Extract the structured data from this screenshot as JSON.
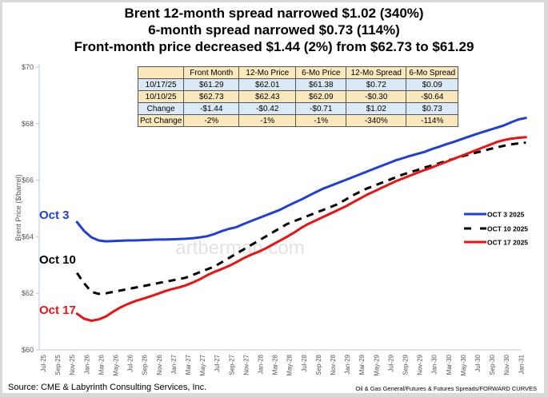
{
  "title_lines": [
    "Brent 12-month spread narrowed $1.02 (340%)",
    "6-month spread narrowed $0.73 (114%)",
    "Front-month price decreased $1.44 (2%) from $62.73 to $61.29"
  ],
  "source": "Source: CME & Labyrinth Consulting Services, Inc.",
  "file_path": "Oil & Gas General/Futures & Futures Spreads/FORWARD CURVES",
  "watermark": "artberman.com",
  "summary_table": {
    "headers": [
      "",
      "Front Month",
      "12-Mo Price",
      "6-Mo Price",
      "12-Mo Spread",
      "6-Mo Spread"
    ],
    "rows": [
      {
        "label": "10/17/25",
        "cells": [
          "$61.29",
          "$62.01",
          "$61.38",
          "$0.72",
          "$0.09"
        ]
      },
      {
        "label": "10/10/25",
        "cells": [
          "$62.73",
          "$62.43",
          "$62.09",
          "-$0.30",
          "-$0.64"
        ]
      },
      {
        "label": "Change",
        "cells": [
          "-$1.44",
          "-$0.42",
          "-$0.71",
          "$1.02",
          "$0.73"
        ]
      },
      {
        "label": "Pct Change",
        "cells": [
          "-2%",
          "-1%",
          "-1%",
          "-340%",
          "-114%"
        ]
      }
    ]
  },
  "chart_data": {
    "type": "line",
    "title": "Brent 12-month spread narrowed $1.02 (340%) / 6-month spread narrowed $0.73 (114%) / Front-month price decreased $1.44 (2%) from $62.73 to $61.29",
    "xlabel": "",
    "ylabel": "Brent Price ($/barrel)",
    "ylim": [
      60,
      70
    ],
    "y_ticks": [
      60,
      62,
      64,
      66,
      68,
      70
    ],
    "y_tick_labels": [
      "$60",
      "$62",
      "$64",
      "$66",
      "$68",
      "$70"
    ],
    "x_tick_labels": [
      "Jul-25",
      "Sep-25",
      "Nov-25",
      "Jan-26",
      "Mar-26",
      "May-26",
      "Jul-26",
      "Sep-26",
      "Nov-26",
      "Jan-27",
      "Mar-27",
      "May-27",
      "Jul-27",
      "Sep-27",
      "Nov-27",
      "Jan-28",
      "Mar-28",
      "May-28",
      "Jul-28",
      "Sep-28",
      "Nov-28",
      "Jan-29",
      "Mar-29",
      "May-29",
      "Jul-29",
      "Sep-29",
      "Nov-29",
      "Jan-30",
      "Mar-30",
      "May-30",
      "Jul-30",
      "Sep-30",
      "Nov-30",
      "Jan-31"
    ],
    "x_first_month_index": 4,
    "x_axis_months": 67,
    "grid": false,
    "legend_position": "right",
    "colors": {
      "oct3": "#1f3fd6",
      "oct10": "#000000",
      "oct17": "#ee1111"
    },
    "annotations": [
      {
        "text": "Oct 3",
        "series": "oct3"
      },
      {
        "text": "Oct 10",
        "series": "oct10"
      },
      {
        "text": "Oct 17",
        "series": "oct17"
      }
    ],
    "series": [
      {
        "key": "oct3",
        "name": "OCT 3 2025",
        "style": "solid",
        "values": [
          64.52,
          64.2,
          63.98,
          63.87,
          63.84,
          63.85,
          63.86,
          63.87,
          63.87,
          63.88,
          63.89,
          63.9,
          63.9,
          63.91,
          63.92,
          63.93,
          63.95,
          63.98,
          64.02,
          64.1,
          64.2,
          64.28,
          64.34,
          64.45,
          64.55,
          64.65,
          64.75,
          64.85,
          64.95,
          65.08,
          65.2,
          65.32,
          65.45,
          65.58,
          65.7,
          65.8,
          65.9,
          66.0,
          66.1,
          66.2,
          66.3,
          66.4,
          66.5,
          66.6,
          66.7,
          66.78,
          66.86,
          66.93,
          67.0,
          67.1,
          67.18,
          67.27,
          67.35,
          67.44,
          67.53,
          67.62,
          67.7,
          67.78,
          67.86,
          67.94,
          68.05,
          68.15,
          68.2
        ]
      },
      {
        "key": "oct10",
        "name": "OCT 10 2025",
        "style": "dashed",
        "values": [
          62.72,
          62.35,
          62.05,
          61.98,
          62.0,
          62.05,
          62.1,
          62.15,
          62.2,
          62.25,
          62.3,
          62.35,
          62.4,
          62.45,
          62.5,
          62.55,
          62.65,
          62.75,
          62.85,
          62.95,
          63.1,
          63.25,
          63.4,
          63.55,
          63.7,
          63.85,
          64.0,
          64.15,
          64.3,
          64.45,
          64.55,
          64.65,
          64.75,
          64.85,
          64.95,
          65.05,
          65.15,
          65.3,
          65.45,
          65.58,
          65.7,
          65.8,
          65.9,
          66.0,
          66.1,
          66.2,
          66.28,
          66.36,
          66.45,
          66.52,
          66.6,
          66.68,
          66.75,
          66.83,
          66.9,
          66.97,
          67.03,
          67.1,
          67.16,
          67.22,
          67.27,
          67.3,
          67.33
        ]
      },
      {
        "key": "oct17",
        "name": "OCT 17 2025",
        "style": "solid",
        "values": [
          61.28,
          61.1,
          61.03,
          61.08,
          61.18,
          61.35,
          61.5,
          61.62,
          61.72,
          61.8,
          61.88,
          61.97,
          62.06,
          62.14,
          62.2,
          62.28,
          62.38,
          62.5,
          62.64,
          62.76,
          62.86,
          62.97,
          63.1,
          63.24,
          63.36,
          63.46,
          63.58,
          63.72,
          63.86,
          64.0,
          64.15,
          64.32,
          64.46,
          64.58,
          64.7,
          64.82,
          64.94,
          65.06,
          65.2,
          65.34,
          65.48,
          65.6,
          65.72,
          65.84,
          65.96,
          66.06,
          66.16,
          66.26,
          66.36,
          66.45,
          66.55,
          66.65,
          66.75,
          66.85,
          66.95,
          67.05,
          67.15,
          67.25,
          67.35,
          67.42,
          67.47,
          67.5,
          67.52
        ]
      }
    ]
  }
}
